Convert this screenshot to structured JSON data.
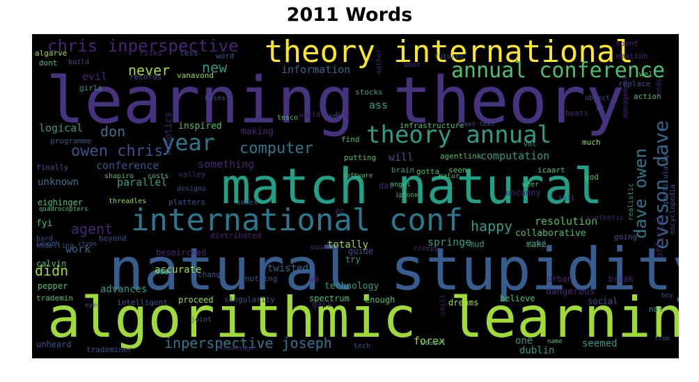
{
  "title": "2011 Words",
  "colors": {
    "background": "#000000",
    "dark_purple": "#46327e",
    "purple": "#482475",
    "blue": "#3b528b",
    "steel": "#365d8d",
    "teal": "#277f8e",
    "green": "#1fa187",
    "mint": "#4ac16d",
    "lime": "#a0da39",
    "yellow": "#fde725"
  },
  "words": [
    {
      "text": "learning theory",
      "color": "#46327e"
    },
    {
      "text": "natural stupidity",
      "color": "#365d8d"
    },
    {
      "text": "algorithmic learning",
      "color": "#a0da39"
    },
    {
      "text": "match natural",
      "color": "#1fa187"
    },
    {
      "text": "theory international",
      "color": "#fde725"
    },
    {
      "text": "international conf",
      "color": "#2a788e"
    },
    {
      "text": "annual conference",
      "color": "#4ac16d"
    },
    {
      "text": "theory annual",
      "color": "#2f9b84"
    },
    {
      "text": "chris inperspective",
      "color": "#482475"
    },
    {
      "text": "year",
      "color": "#2a788e"
    },
    {
      "text": "eveson dave",
      "color": "#31688e"
    },
    {
      "text": "dave owen",
      "color": "#2a788e"
    },
    {
      "text": "owen chris",
      "color": "#3b528b"
    },
    {
      "text": "computer",
      "color": "#2a788e"
    },
    {
      "text": "never",
      "color": "#a0da39"
    },
    {
      "text": "new",
      "color": "#2f9b84"
    },
    {
      "text": "don",
      "color": "#3e6f8e"
    },
    {
      "text": "agent",
      "color": "#482475"
    },
    {
      "text": "happy",
      "color": "#2f9b84"
    },
    {
      "text": "inperspective joseph",
      "color": "#2a788e"
    },
    {
      "text": "didn",
      "color": "#a0da39"
    },
    {
      "text": "information",
      "color": "#31688e"
    },
    {
      "text": "logical",
      "color": "#2f9b84"
    },
    {
      "text": "evil",
      "color": "#482475"
    },
    {
      "text": "computation",
      "color": "#2f9b84"
    },
    {
      "text": "resolution",
      "color": "#4ac16d"
    },
    {
      "text": "conference",
      "color": "#3b528b"
    },
    {
      "text": "something",
      "color": "#482475"
    },
    {
      "text": "parallel",
      "color": "#2f9b84"
    },
    {
      "text": "will",
      "color": "#3b528b"
    },
    {
      "text": "ass",
      "color": "#2f9b84"
    },
    {
      "text": "work",
      "color": "#31688e"
    },
    {
      "text": "forex",
      "color": "#a0da39"
    },
    {
      "text": "springe",
      "color": "#2f9b84"
    },
    {
      "text": "advances",
      "color": "#2f9b84"
    },
    {
      "text": "accurate",
      "color": "#a0da39"
    },
    {
      "text": "unknown",
      "color": "#3e6f8e"
    },
    {
      "text": "twisted",
      "color": "#31688e"
    },
    {
      "text": "seemed",
      "color": "#2f9b84"
    },
    {
      "text": "one",
      "color": "#2f9b84"
    },
    {
      "text": "official",
      "color": "#482475"
    },
    {
      "text": "technology",
      "color": "#2f9b84"
    },
    {
      "text": "collaborative",
      "color": "#4ac16d"
    },
    {
      "text": "dangerous",
      "color": "#482475"
    },
    {
      "text": "inspired",
      "color": "#4ac16d"
    },
    {
      "text": "robotics",
      "color": "#482475"
    },
    {
      "text": "infrastructure",
      "color": "#4ac16d"
    },
    {
      "text": "putting",
      "color": "#4ac16d"
    },
    {
      "text": "gotta",
      "color": "#4ac16d"
    },
    {
      "text": "seen",
      "color": "#4ac16d"
    },
    {
      "text": "brain",
      "color": "#2f9b84"
    },
    {
      "text": "agentlink",
      "color": "#4ac16d"
    },
    {
      "text": "icaart",
      "color": "#4ac16d"
    },
    {
      "text": "much",
      "color": "#a0da39"
    },
    {
      "text": "god",
      "color": "#4ac16d"
    },
    {
      "text": "management",
      "color": "#482475"
    },
    {
      "text": "realistic",
      "color": "#2f9b84"
    },
    {
      "text": "particularly",
      "color": "#3b528b"
    },
    {
      "text": "encyclopedia",
      "color": "#3b528b"
    },
    {
      "text": "emotion",
      "color": "#482475"
    },
    {
      "text": "replace",
      "color": "#3b528b"
    },
    {
      "text": "action",
      "color": "#4ac16d"
    },
    {
      "text": "spent",
      "color": "#482475"
    },
    {
      "text": "wel",
      "color": "#4ac16d"
    },
    {
      "text": "beats",
      "color": "#482475"
    },
    {
      "text": "needs",
      "color": "#482475"
    },
    {
      "text": "stocks",
      "color": "#2f9b84"
    },
    {
      "text": "hey",
      "color": "#482475"
    },
    {
      "text": "find",
      "color": "#4ac16d"
    },
    {
      "text": "author",
      "color": "#482475"
    },
    {
      "text": "dear",
      "color": "#482475"
    },
    {
      "text": "futures",
      "color": "#3b528b"
    },
    {
      "text": "making",
      "color": "#482475"
    },
    {
      "text": "word",
      "color": "#3b528b"
    },
    {
      "text": "less",
      "color": "#3b528b"
    },
    {
      "text": "risks",
      "color": "#482475"
    },
    {
      "text": "records",
      "color": "#3b528b"
    },
    {
      "text": "vanavond",
      "color": "#a0da39"
    },
    {
      "text": "algarve",
      "color": "#a0da39"
    },
    {
      "text": "dont",
      "color": "#4ac16d"
    },
    {
      "text": "girls",
      "color": "#2f9b84"
    },
    {
      "text": "programme",
      "color": "#3b528b"
    },
    {
      "text": "finally",
      "color": "#3b528b"
    },
    {
      "text": "shapiro",
      "color": "#4ac16d"
    },
    {
      "text": "costs",
      "color": "#4ac16d"
    },
    {
      "text": "valley",
      "color": "#482475"
    },
    {
      "text": "designs",
      "color": "#3b528b"
    },
    {
      "text": "threadles",
      "color": "#a0da39"
    },
    {
      "text": "platters",
      "color": "#3b528b"
    },
    {
      "text": "eighinger",
      "color": "#4ac16d"
    },
    {
      "text": "fyi",
      "color": "#4ac16d"
    },
    {
      "text": "beyond",
      "color": "#3b528b"
    },
    {
      "text": "distributed",
      "color": "#482475"
    },
    {
      "text": "calvin",
      "color": "#4ac16d"
    },
    {
      "text": "pepper",
      "color": "#4ac16d"
    },
    {
      "text": "trademin",
      "color": "#4ac16d"
    },
    {
      "text": "intelligent",
      "color": "#3b528b"
    },
    {
      "text": "proceed",
      "color": "#a0da39"
    },
    {
      "text": "singularity",
      "color": "#3b528b"
    },
    {
      "text": "spectrum",
      "color": "#4ac16d"
    },
    {
      "text": "believe",
      "color": "#4ac16d"
    },
    {
      "text": "social",
      "color": "#3b528b"
    },
    {
      "text": "nal",
      "color": "#2f9b84"
    },
    {
      "text": "dreams",
      "color": "#a0da39"
    },
    {
      "text": "gals",
      "color": "#482475"
    },
    {
      "text": "enough",
      "color": "#4ac16d"
    },
    {
      "text": "stuart",
      "color": "#2f9b84"
    },
    {
      "text": "dublin",
      "color": "#2f9b84"
    },
    {
      "text": "unheard",
      "color": "#3b528b"
    },
    {
      "text": "trademiner",
      "color": "#3b528b"
    },
    {
      "text": "irrelevance",
      "color": "#2f9b84"
    },
    {
      "text": "mud",
      "color": "#2f9b84"
    },
    {
      "text": "totally",
      "color": "#a0da39"
    },
    {
      "text": "usually",
      "color": "#482475"
    },
    {
      "text": "guide",
      "color": "#3b528b"
    },
    {
      "text": "try",
      "color": "#2f9b84"
    },
    {
      "text": "wa",
      "color": "#482475"
    },
    {
      "text": "make",
      "color": "#4ac16d"
    },
    {
      "text": "uncanny",
      "color": "#482475"
    },
    {
      "text": "nothing",
      "color": "#3b528b"
    },
    {
      "text": "besmirched",
      "color": "#482475"
    },
    {
      "text": "change",
      "color": "#3b528b"
    },
    {
      "text": "via",
      "color": "#4ac16d"
    },
    {
      "text": "chill",
      "color": "#482475"
    },
    {
      "text": "urban",
      "color": "#482475"
    },
    {
      "text": "break",
      "color": "#482475"
    },
    {
      "text": "read",
      "color": "#3b528b"
    },
    {
      "text": "going",
      "color": "#3b528b"
    },
    {
      "text": "natur",
      "color": "#4ac16d"
    },
    {
      "text": "dat",
      "color": "#482475"
    },
    {
      "text": "angel",
      "color": "#4ac16d"
    },
    {
      "text": "weer",
      "color": "#4ac16d"
    },
    {
      "text": "vol",
      "color": "#2f9b84"
    },
    {
      "text": "tech",
      "color": "#3b528b"
    },
    {
      "text": "index",
      "color": "#3b528b"
    },
    {
      "text": "pe",
      "color": "#482475"
    },
    {
      "text": "joint",
      "color": "#3b528b"
    },
    {
      "text": "creepy",
      "color": "#482475"
    },
    {
      "text": "modelling",
      "color": "#3b528b"
    },
    {
      "text": "hard",
      "color": "#3b528b"
    },
    {
      "text": "quadrocopters",
      "color": "#4ac16d"
    },
    {
      "text": "length",
      "color": "#3b528b"
    },
    {
      "text": "ctype",
      "color": "#3b528b"
    },
    {
      "text": "eyes",
      "color": "#3b528b"
    },
    {
      "text": "build",
      "color": "#3b528b"
    },
    {
      "text": "tesco",
      "color": "#4ac16d"
    },
    {
      "text": "world",
      "color": "#482475"
    },
    {
      "text": "snut",
      "color": "#3b528b"
    },
    {
      "text": "bases",
      "color": "#3b528b"
    },
    {
      "text": "tweet text",
      "color": "#3b528b"
    },
    {
      "text": "software",
      "color": "#4ac16d"
    },
    {
      "text": "iphone",
      "color": "#4ac16d"
    },
    {
      "text": "object",
      "color": "#3b528b"
    },
    {
      "text": "ar",
      "color": "#3b528b"
    },
    {
      "text": "synthetic",
      "color": "#482475"
    },
    {
      "text": "tell",
      "color": "#3b528b"
    },
    {
      "text": "boy",
      "color": "#3b528b"
    },
    {
      "text": "from",
      "color": "#3b528b"
    },
    {
      "text": "knowledge",
      "color": "#482475"
    },
    {
      "text": "name",
      "color": "#4ac16d"
    }
  ]
}
